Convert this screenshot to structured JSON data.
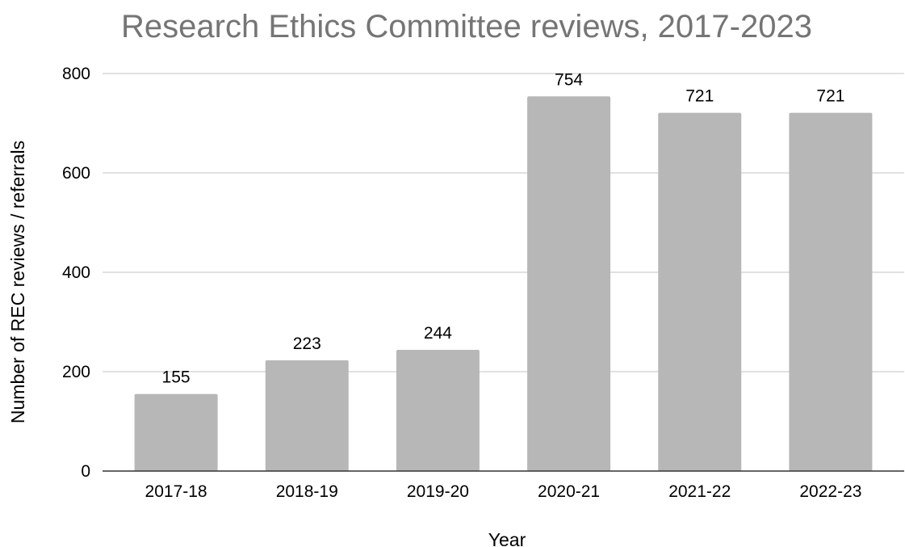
{
  "chart_data": {
    "type": "bar",
    "title": "Research Ethics Committee reviews, 2017-2023",
    "xlabel": "Year",
    "ylabel": "Number of REC reviews / referrals",
    "categories": [
      "2017-18",
      "2018-19",
      "2019-20",
      "2020-21",
      "2021-22",
      "2022-23"
    ],
    "values": [
      155,
      223,
      244,
      754,
      721,
      721
    ],
    "data_labels": [
      "155",
      "223",
      "244",
      "754",
      "721",
      "721"
    ],
    "ylim": [
      0,
      800
    ],
    "yticks": [
      "0",
      "200",
      "400",
      "600",
      "800"
    ],
    "grid": true,
    "legend": "none",
    "colors": {
      "bar": "#b7b7b7",
      "title": "#757575",
      "grid": "#cfcfcf",
      "axis": "#333333"
    }
  }
}
